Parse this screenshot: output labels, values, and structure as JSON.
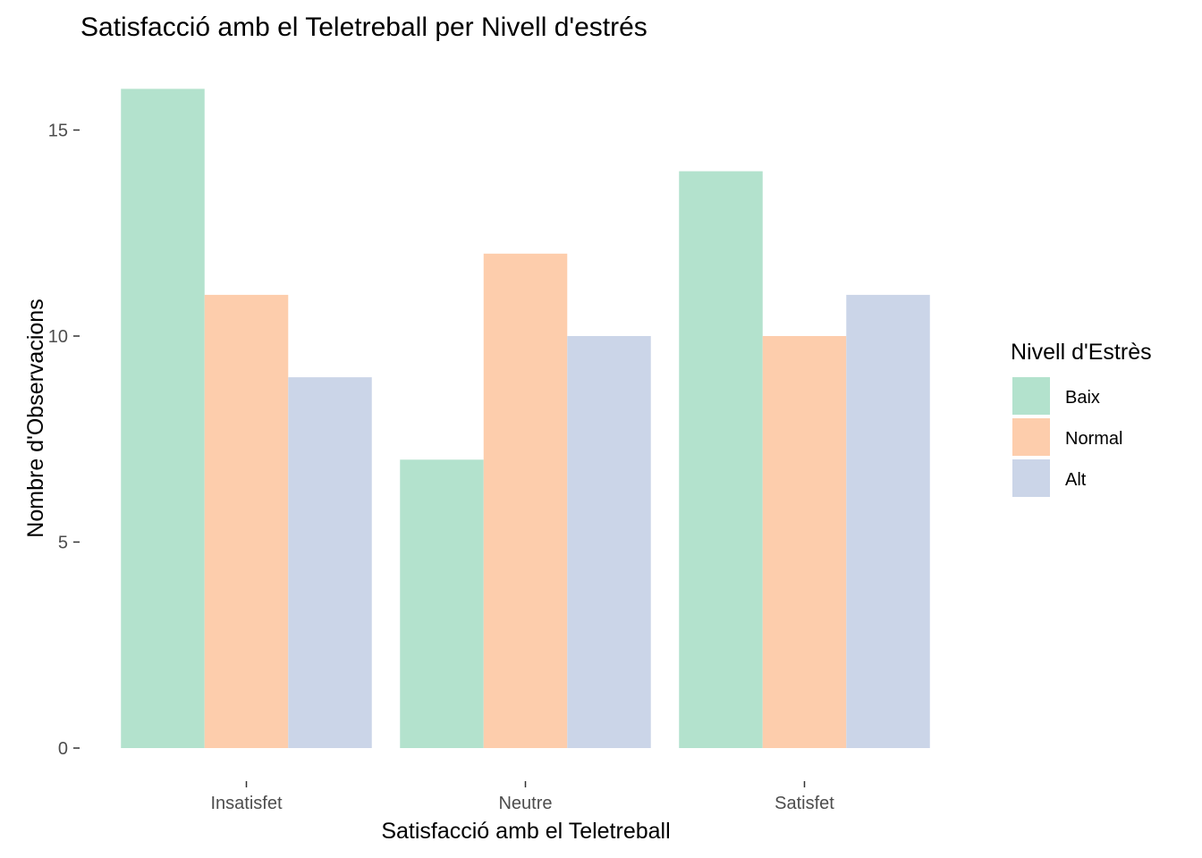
{
  "chart_data": {
    "type": "bar",
    "title": "Satisfacció amb el Teletreball per Nivell d'estrés",
    "xlabel": "Satisfacció amb el Teletreball",
    "ylabel": "Nombre d'Observacions",
    "categories": [
      "Insatisfet",
      "Neutre",
      "Satisfet"
    ],
    "series": [
      {
        "name": "Baix",
        "values": [
          16,
          7,
          14
        ],
        "color": "#b3e2cd"
      },
      {
        "name": "Normal",
        "values": [
          11,
          12,
          10
        ],
        "color": "#fdcdac"
      },
      {
        "name": "Alt",
        "values": [
          9,
          10,
          11
        ],
        "color": "#cbd5e8"
      }
    ],
    "ylim": [
      0,
      16
    ],
    "yticks": [
      0,
      5,
      10,
      15
    ],
    "grid": false,
    "legend": {
      "title": "Nivell d'Estrès",
      "position": "right"
    }
  }
}
